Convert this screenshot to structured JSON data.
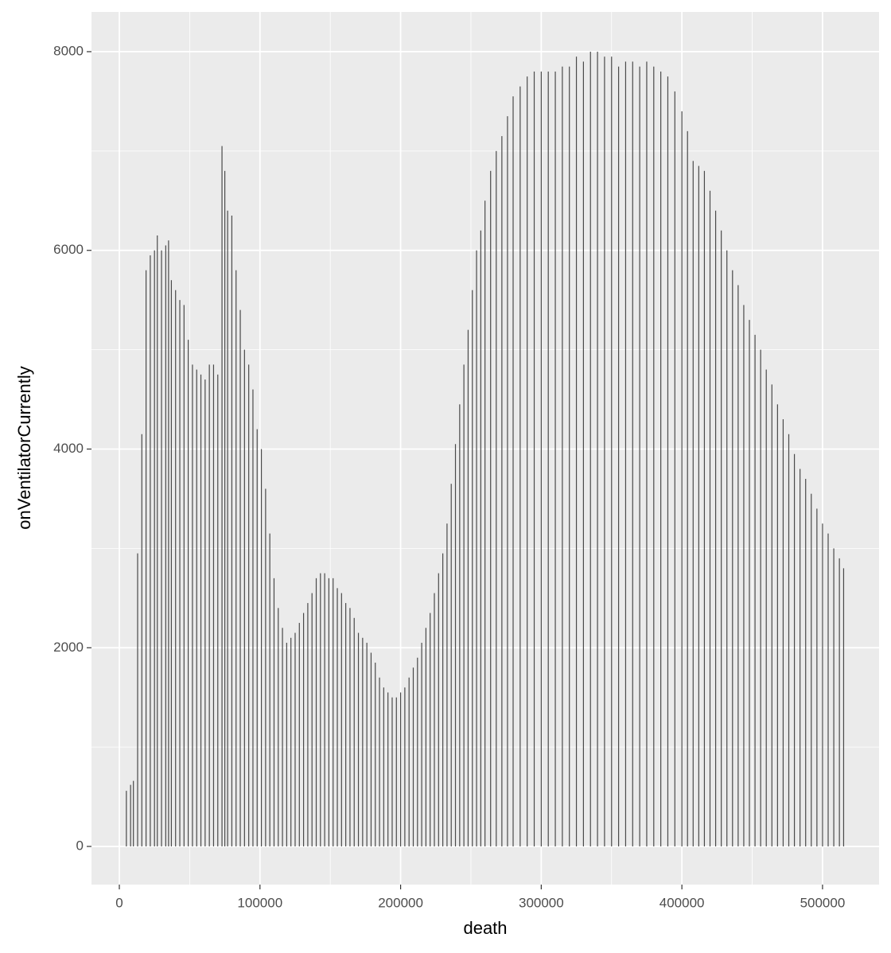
{
  "chart_data": {
    "type": "bar",
    "x_label": "death",
    "y_label": "onVentilatorCurrently",
    "color": "#4a4a4a",
    "x": [
      5000,
      8000,
      10000,
      13000,
      16000,
      19000,
      22000,
      25000,
      27000,
      30000,
      33000,
      35000,
      37000,
      40000,
      43000,
      46000,
      49000,
      52000,
      55000,
      58000,
      61000,
      64000,
      67000,
      70000,
      73000,
      75000,
      77000,
      80000,
      83000,
      86000,
      89000,
      92000,
      95000,
      98000,
      101000,
      104000,
      107000,
      110000,
      113000,
      116000,
      119000,
      122000,
      125000,
      128000,
      131000,
      134000,
      137000,
      140000,
      143000,
      146000,
      149000,
      152000,
      155000,
      158000,
      161000,
      164000,
      167000,
      170000,
      173000,
      176000,
      179000,
      182000,
      185000,
      188000,
      191000,
      194000,
      197000,
      200000,
      203000,
      206000,
      209000,
      212000,
      215000,
      218000,
      221000,
      224000,
      227000,
      230000,
      233000,
      236000,
      239000,
      242000,
      245000,
      248000,
      251000,
      254000,
      257000,
      260000,
      264000,
      268000,
      272000,
      276000,
      280000,
      285000,
      290000,
      295000,
      300000,
      305000,
      310000,
      315000,
      320000,
      325000,
      330000,
      335000,
      340000,
      345000,
      350000,
      355000,
      360000,
      365000,
      370000,
      375000,
      380000,
      385000,
      390000,
      395000,
      400000,
      404000,
      408000,
      412000,
      416000,
      420000,
      424000,
      428000,
      432000,
      436000,
      440000,
      444000,
      448000,
      452000,
      456000,
      460000,
      464000,
      468000,
      472000,
      476000,
      480000,
      484000,
      488000,
      492000,
      496000,
      500000,
      504000,
      508000,
      512000,
      515000
    ],
    "values": [
      560,
      620,
      660,
      2950,
      4150,
      5800,
      5950,
      6000,
      6150,
      6000,
      6050,
      6100,
      5700,
      5600,
      5500,
      5450,
      5100,
      4850,
      4800,
      4750,
      4700,
      4850,
      4850,
      4750,
      7050,
      6800,
      6400,
      6350,
      5800,
      5400,
      5000,
      4850,
      4600,
      4200,
      4000,
      3600,
      3150,
      2700,
      2400,
      2200,
      2050,
      2100,
      2150,
      2250,
      2350,
      2450,
      2550,
      2700,
      2750,
      2750,
      2700,
      2700,
      2600,
      2550,
      2450,
      2400,
      2300,
      2150,
      2100,
      2050,
      1950,
      1850,
      1700,
      1600,
      1550,
      1500,
      1500,
      1550,
      1600,
      1700,
      1800,
      1900,
      2050,
      2200,
      2350,
      2550,
      2750,
      2950,
      3250,
      3650,
      4050,
      4450,
      4850,
      5200,
      5600,
      6000,
      6200,
      6500,
      6800,
      7000,
      7150,
      7350,
      7550,
      7650,
      7750,
      7800,
      7800,
      7800,
      7800,
      7850,
      7850,
      7950,
      7900,
      8000,
      8000,
      7950,
      7950,
      7850,
      7900,
      7900,
      7850,
      7900,
      7850,
      7800,
      7750,
      7600,
      7400,
      7200,
      6900,
      6850,
      6800,
      6600,
      6400,
      6200,
      6000,
      5800,
      5650,
      5450,
      5300,
      5150,
      5000,
      4800,
      4650,
      4450,
      4300,
      4150,
      3950,
      3800,
      3700,
      3550,
      3400,
      3250,
      3150,
      3000,
      2900,
      2800
    ],
    "xlim": [
      -19800,
      540200
    ],
    "xticks": [
      0,
      100000,
      200000,
      300000,
      400000,
      500000
    ],
    "x_minor_ticks": [
      50000,
      150000,
      250000,
      350000,
      450000
    ],
    "ylim": [
      -384,
      8400
    ],
    "yticks": [
      0,
      2000,
      4000,
      6000,
      8000
    ],
    "y_minor_ticks": [
      1000,
      3000,
      5000,
      7000
    ],
    "grid": true
  }
}
